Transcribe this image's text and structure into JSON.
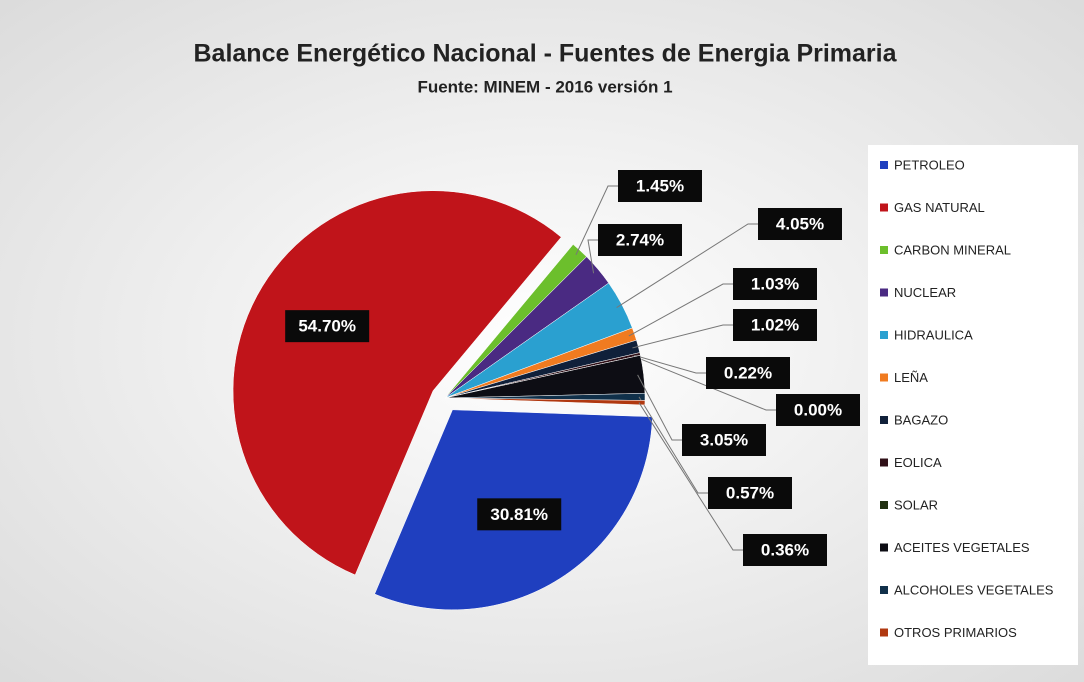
{
  "chart_data": {
    "type": "pie",
    "title": "Balance Energético Nacional - Fuentes de Energia Primaria",
    "subtitle": "Fuente: MINEM - 2016 versión 1",
    "categories": [
      "PETROLEO",
      "GAS NATURAL",
      "CARBON MINERAL",
      "NUCLEAR",
      "HIDRAULICA",
      "LEÑA",
      "BAGAZO",
      "EOLICA",
      "SOLAR",
      "ACEITES VEGETALES",
      "ALCOHOLES VEGETALES",
      "OTROS PRIMARIOS"
    ],
    "values": [
      30.81,
      54.7,
      1.45,
      2.74,
      4.05,
      1.03,
      1.02,
      0.22,
      0.0,
      3.05,
      0.57,
      0.36
    ],
    "value_labels": [
      "30.81%",
      "54.70%",
      "1.45%",
      "2.74%",
      "4.05%",
      "1.03%",
      "1.02%",
      "0.22%",
      "0.00%",
      "3.05%",
      "0.57%",
      "0.36%"
    ],
    "colors": [
      "#1f3fbf",
      "#c0141a",
      "#6cbf2c",
      "#4a2a82",
      "#2aa0d0",
      "#f07b20",
      "#10203a",
      "#301018",
      "#203010",
      "#0d0d14",
      "#10304a",
      "#b03810"
    ],
    "legend": "right"
  }
}
